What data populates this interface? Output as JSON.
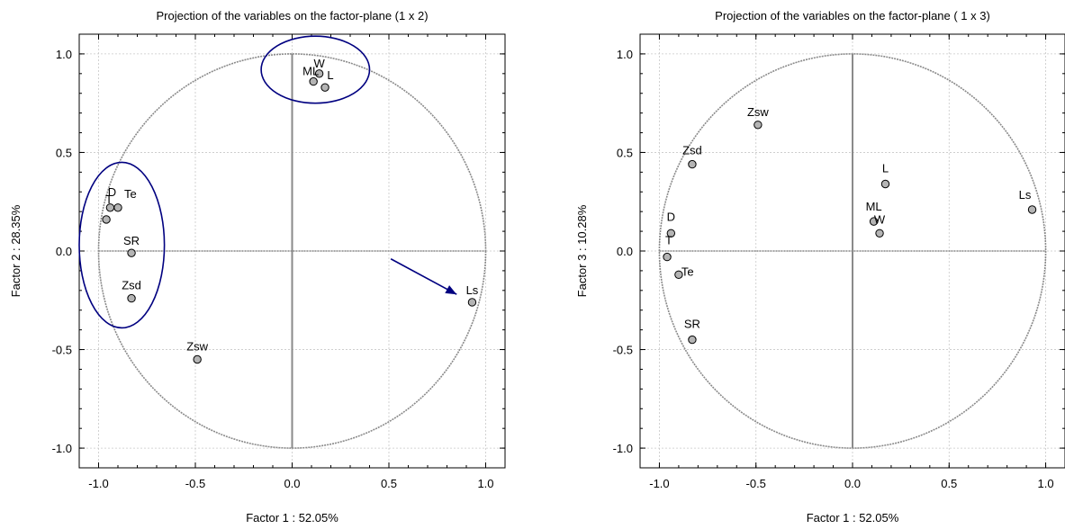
{
  "chart_data": [
    {
      "type": "scatter",
      "title": "Projection of the variables on the factor-plane (1 x 2)",
      "xlabel": "Factor 1 : 52.05%",
      "ylabel": "Factor 2 : 28.35%",
      "xlim": [
        -1.1,
        1.1
      ],
      "ylim": [
        -1.1,
        1.1
      ],
      "xticks": [
        "-1.0",
        "-0.5",
        "0.0",
        "0.5",
        "1.0"
      ],
      "yticks": [
        "1.0",
        "0.5",
        "0.0",
        "-0.5",
        "-1.0"
      ],
      "grid": true,
      "unit_circle": true,
      "points": [
        {
          "label": "W",
          "x": 0.14,
          "y": 0.9
        },
        {
          "label": "ML",
          "x": 0.11,
          "y": 0.86
        },
        {
          "label": "L",
          "x": 0.17,
          "y": 0.83
        },
        {
          "label": "D",
          "x": -0.94,
          "y": 0.22
        },
        {
          "label": "Te",
          "x": -0.9,
          "y": 0.22
        },
        {
          "label": "T",
          "x": -0.96,
          "y": 0.16
        },
        {
          "label": "SR",
          "x": -0.83,
          "y": -0.01
        },
        {
          "label": "Zsd",
          "x": -0.83,
          "y": -0.24
        },
        {
          "label": "Zsw",
          "x": -0.49,
          "y": -0.55
        },
        {
          "label": "Ls",
          "x": 0.93,
          "y": -0.26
        }
      ],
      "annotations": [
        {
          "kind": "ellipse",
          "cx": 0.12,
          "cy": 0.92,
          "rx": 0.28,
          "ry": 0.17,
          "color": "#000080"
        },
        {
          "kind": "ellipse",
          "cx": -0.88,
          "cy": 0.03,
          "rx": 0.22,
          "ry": 0.42,
          "color": "#000080"
        },
        {
          "kind": "arrow",
          "x1": 0.51,
          "y1": -0.04,
          "x2": 0.85,
          "y2": -0.22,
          "color": "#000080"
        }
      ]
    },
    {
      "type": "scatter",
      "title": "Projection of the variables on the factor-plane ( 1 x  3)",
      "xlabel": "Factor 1 : 52.05%",
      "ylabel": "Factor 3 : 10.28%",
      "xlim": [
        -1.1,
        1.1
      ],
      "ylim": [
        -1.1,
        1.1
      ],
      "xticks": [
        "-1.0",
        "-0.5",
        "0.0",
        "0.5",
        "1.0"
      ],
      "yticks": [
        "1.0",
        "0.5",
        "0.0",
        "-0.5",
        "-1.0"
      ],
      "grid": true,
      "unit_circle": true,
      "points": [
        {
          "label": "Zsw",
          "x": -0.49,
          "y": 0.64
        },
        {
          "label": "Zsd",
          "x": -0.83,
          "y": 0.44
        },
        {
          "label": "L",
          "x": 0.17,
          "y": 0.34
        },
        {
          "label": "Ls",
          "x": 0.93,
          "y": 0.21
        },
        {
          "label": "ML",
          "x": 0.11,
          "y": 0.15
        },
        {
          "label": "W",
          "x": 0.14,
          "y": 0.09
        },
        {
          "label": "D",
          "x": -0.94,
          "y": 0.09
        },
        {
          "label": "T",
          "x": -0.96,
          "y": -0.03
        },
        {
          "label": "Te",
          "x": -0.9,
          "y": -0.12
        },
        {
          "label": "SR",
          "x": -0.83,
          "y": -0.45
        }
      ],
      "annotations": []
    }
  ]
}
